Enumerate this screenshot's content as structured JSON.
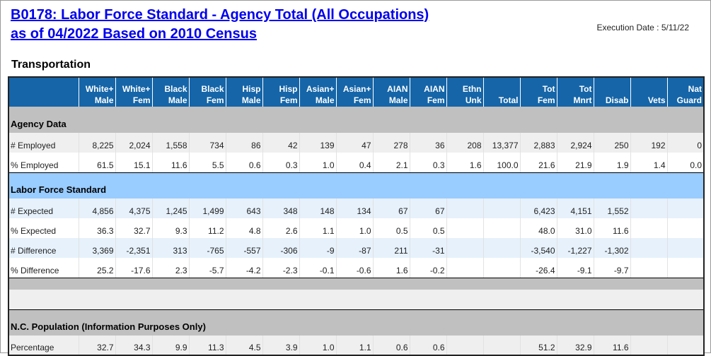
{
  "title_line1": "B0178: Labor Force Standard - Agency Total (All Occupations)",
  "title_line2": "as of 04/2022 Based on 2010 Census",
  "execution_date": "Execution Date : 5/11/22",
  "section": "Transportation",
  "columns": [
    [
      "White+",
      "Male"
    ],
    [
      "White+",
      "Fem"
    ],
    [
      "Black",
      "Male"
    ],
    [
      "Black",
      "Fem"
    ],
    [
      "Hisp",
      "Male"
    ],
    [
      "Hisp",
      "Fem"
    ],
    [
      "Asian+",
      "Male"
    ],
    [
      "Asian+",
      "Fem"
    ],
    [
      "AIAN",
      "Male"
    ],
    [
      "AIAN",
      "Fem"
    ],
    [
      "Ethn",
      "Unk"
    ],
    [
      "",
      "Total"
    ],
    [
      "Tot",
      "Fem"
    ],
    [
      "Tot",
      "Mnrt"
    ],
    [
      "",
      "Disab"
    ],
    [
      "",
      "Vets"
    ],
    [
      "Nat",
      "Guard"
    ]
  ],
  "rows": [
    {
      "type": "band",
      "style": "gray",
      "label": "Agency Data"
    },
    {
      "type": "data",
      "style": "lg",
      "label": "# Employed",
      "values": [
        "8,225",
        "2,024",
        "1,558",
        "734",
        "86",
        "42",
        "139",
        "47",
        "278",
        "36",
        "208",
        "13,377",
        "2,883",
        "2,924",
        "250",
        "192",
        "0"
      ]
    },
    {
      "type": "data",
      "style": "w",
      "label": "% Employed",
      "values": [
        "61.5",
        "15.1",
        "11.6",
        "5.5",
        "0.6",
        "0.3",
        "1.0",
        "0.4",
        "2.1",
        "0.3",
        "1.6",
        "100.0",
        "21.6",
        "21.9",
        "1.9",
        "1.4",
        "0.0"
      ],
      "thick": true
    },
    {
      "type": "band",
      "style": "blue",
      "label": "Labor Force Standard"
    },
    {
      "type": "data",
      "style": "lb",
      "label": "# Expected",
      "values": [
        "4,856",
        "4,375",
        "1,245",
        "1,499",
        "643",
        "348",
        "148",
        "134",
        "67",
        "67",
        "",
        "",
        "6,423",
        "4,151",
        "1,552",
        "",
        ""
      ]
    },
    {
      "type": "data",
      "style": "w",
      "label": "% Expected",
      "values": [
        "36.3",
        "32.7",
        "9.3",
        "11.2",
        "4.8",
        "2.6",
        "1.1",
        "1.0",
        "0.5",
        "0.5",
        "",
        "",
        "48.0",
        "31.0",
        "11.6",
        "",
        ""
      ]
    },
    {
      "type": "data",
      "style": "lb",
      "label": "# Difference",
      "values": [
        "3,369",
        "-2,351",
        "313",
        "-765",
        "-557",
        "-306",
        "-9",
        "-87",
        "211",
        "-31",
        "",
        "",
        "-3,540",
        "-1,227",
        "-1,302",
        "",
        ""
      ]
    },
    {
      "type": "data",
      "style": "w",
      "label": "% Difference",
      "values": [
        "25.2",
        "-17.6",
        "2.3",
        "-5.7",
        "-4.2",
        "-2.3",
        "-0.1",
        "-0.6",
        "1.6",
        "-0.2",
        "",
        "",
        "-26.4",
        "-9.1",
        "-9.7",
        "",
        ""
      ],
      "thick": true
    },
    {
      "type": "spacer",
      "style": "gray",
      "h": 17
    },
    {
      "type": "spacer",
      "style": "lg",
      "h": 28,
      "thick": true
    },
    {
      "type": "band",
      "style": "gray",
      "label": "N.C. Population (Information Purposes Only)"
    },
    {
      "type": "data",
      "style": "lg",
      "label": "Percentage",
      "values": [
        "32.7",
        "34.3",
        "9.9",
        "11.3",
        "4.5",
        "3.9",
        "1.0",
        "1.1",
        "0.6",
        "0.6",
        "",
        "",
        "51.2",
        "32.9",
        "11.6",
        "",
        ""
      ]
    }
  ]
}
